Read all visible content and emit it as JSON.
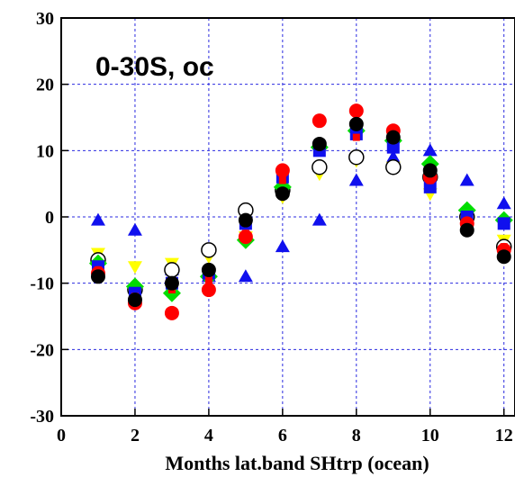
{
  "chart_data": {
    "type": "scatter",
    "title": "",
    "annotation": "0-30S, oc",
    "xlabel": "Months lat.band SHtrp (ocean)",
    "ylabel": "",
    "xlim": [
      0,
      12.3
    ],
    "ylim": [
      -30,
      30
    ],
    "xticks": [
      0,
      2,
      4,
      6,
      8,
      10,
      12
    ],
    "yticks": [
      30,
      20,
      10,
      0,
      -10,
      -20,
      -30
    ],
    "grid": true,
    "x": [
      1,
      2,
      3,
      4,
      5,
      6,
      7,
      8,
      9,
      10,
      11,
      12
    ],
    "series": [
      {
        "marker": "triangle-up",
        "color": "#1010ee",
        "values": [
          -0.5,
          -2,
          -8,
          -9,
          -9,
          -4.5,
          -0.5,
          5.5,
          9,
          10,
          5.5,
          2
        ]
      },
      {
        "marker": "triangle-down",
        "color": "#ffff00",
        "values": [
          -5.5,
          -7.5,
          -7,
          -6,
          -3,
          3,
          6.5,
          8.5,
          7.5,
          3.5,
          -1,
          -3.5
        ]
      },
      {
        "marker": "open-circle",
        "color": "#000000",
        "values": [
          -6.5,
          -11,
          -8,
          -5,
          1,
          4,
          7.5,
          9,
          7.5,
          6,
          0,
          -4.5
        ]
      },
      {
        "marker": "diamond",
        "color": "#00dd00",
        "values": [
          -7,
          -10.5,
          -11.5,
          -9,
          -3.5,
          4.5,
          10.5,
          13,
          11.5,
          8,
          1,
          -0.5
        ]
      },
      {
        "marker": "square",
        "color": "#1010ee",
        "values": [
          -7.5,
          -11.5,
          -10,
          -8.5,
          -1,
          6,
          10,
          12.5,
          10.5,
          4.5,
          0,
          -1
        ]
      },
      {
        "marker": "circle",
        "color": "#ff0000",
        "values": [
          -8.5,
          -13,
          -14.5,
          -11,
          -3,
          7,
          14.5,
          16,
          13,
          6,
          -1,
          -5
        ]
      },
      {
        "marker": "small-square",
        "color": "#ff0000",
        "values": [
          -8,
          -12,
          -11,
          -9.5,
          -2.5,
          5.5,
          11,
          12,
          12,
          5.5,
          -1.5,
          -4.5
        ]
      },
      {
        "marker": "circle",
        "color": "#000000",
        "values": [
          -9,
          -12.5,
          -10,
          -8,
          -0.5,
          3.5,
          11,
          14,
          12,
          7,
          -2,
          -6
        ]
      }
    ]
  }
}
